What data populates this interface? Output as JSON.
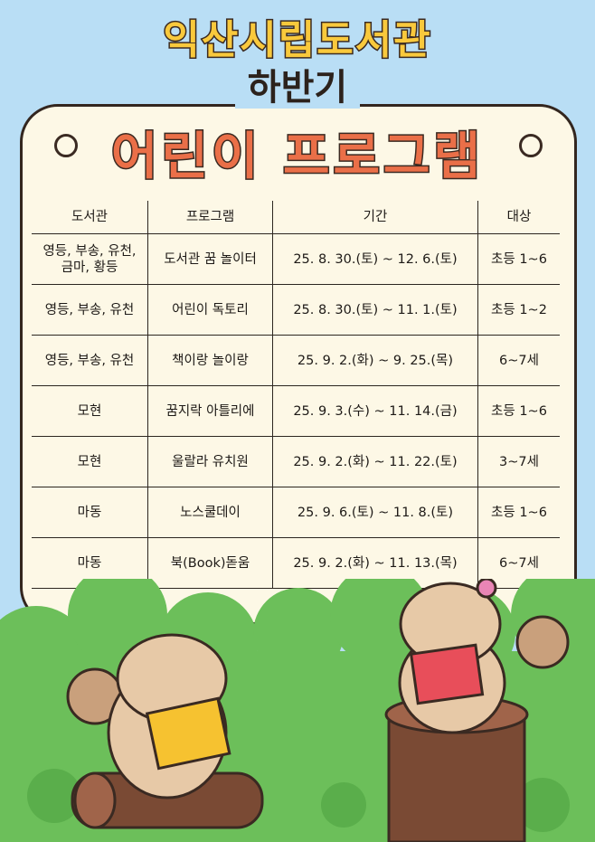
{
  "header": {
    "title": "익산시립도서관",
    "subtitle": "하반기",
    "main_title": "어린이 프로그램"
  },
  "table": {
    "columns": [
      "도서관",
      "프로그램",
      "기간",
      "대상"
    ],
    "rows": [
      [
        "영등, 부송, 유천,\n금마, 황등",
        "도서관 꿈 놀이터",
        "25. 8. 30.(토) ~ 12. 6.(토)",
        "초등 1~6"
      ],
      [
        "영등, 부송, 유천",
        "어린이 독토리",
        "25. 8. 30.(토) ~ 11. 1.(토)",
        "초등 1~2"
      ],
      [
        "영등, 부송, 유천",
        "책이랑 놀이랑",
        "25. 9. 2.(화) ~ 9. 25.(목)",
        "6~7세"
      ],
      [
        "모현",
        "꿈지락 아틀리에",
        "25. 9. 3.(수) ~ 11. 14.(금)",
        "초등 1~6"
      ],
      [
        "모현",
        "울랄라 유치원",
        "25. 9. 2.(화) ~ 11. 22.(토)",
        "3~7세"
      ],
      [
        "마동",
        "노스쿨데이",
        "25. 9. 6.(토) ~ 11. 8.(토)",
        "초등 1~6"
      ],
      [
        "마동",
        "북(Book)돋움",
        "25. 9. 2.(화) ~ 11. 13.(목)",
        "6~7세"
      ]
    ]
  },
  "colors": {
    "sky": "#b9def5",
    "card": "#fdf8e6",
    "title_yellow": "#f9c93c",
    "title_orange": "#ea6f48",
    "grass": "#6cbf5a"
  }
}
